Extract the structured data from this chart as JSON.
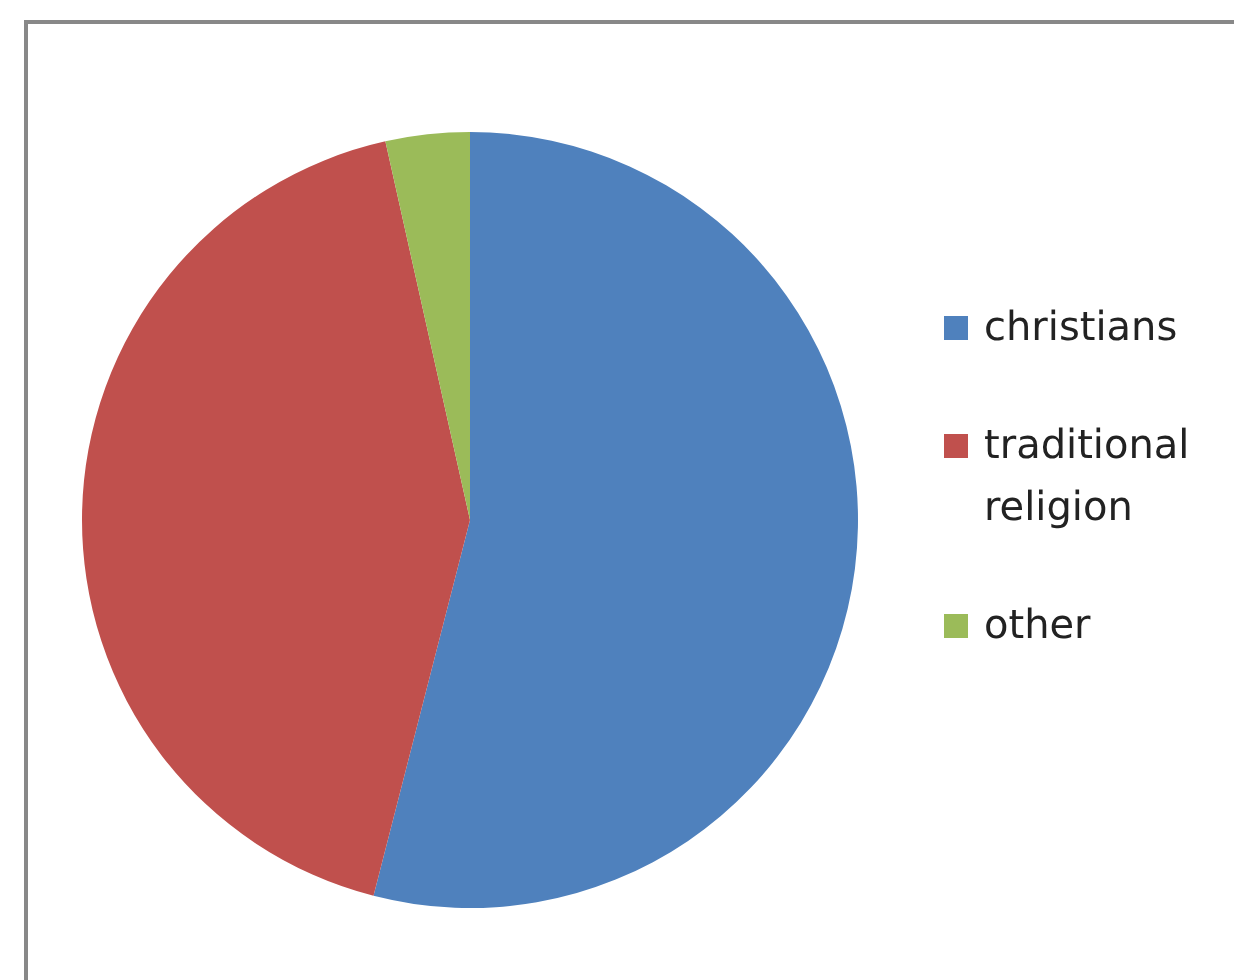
{
  "chart_data": {
    "type": "pie",
    "categories": [
      "christians",
      "traditional religion",
      "other"
    ],
    "values": [
      54,
      42.5,
      3.5
    ],
    "colors": [
      "#4f81bd",
      "#c0504d",
      "#9bbb59"
    ],
    "legend": "right"
  }
}
